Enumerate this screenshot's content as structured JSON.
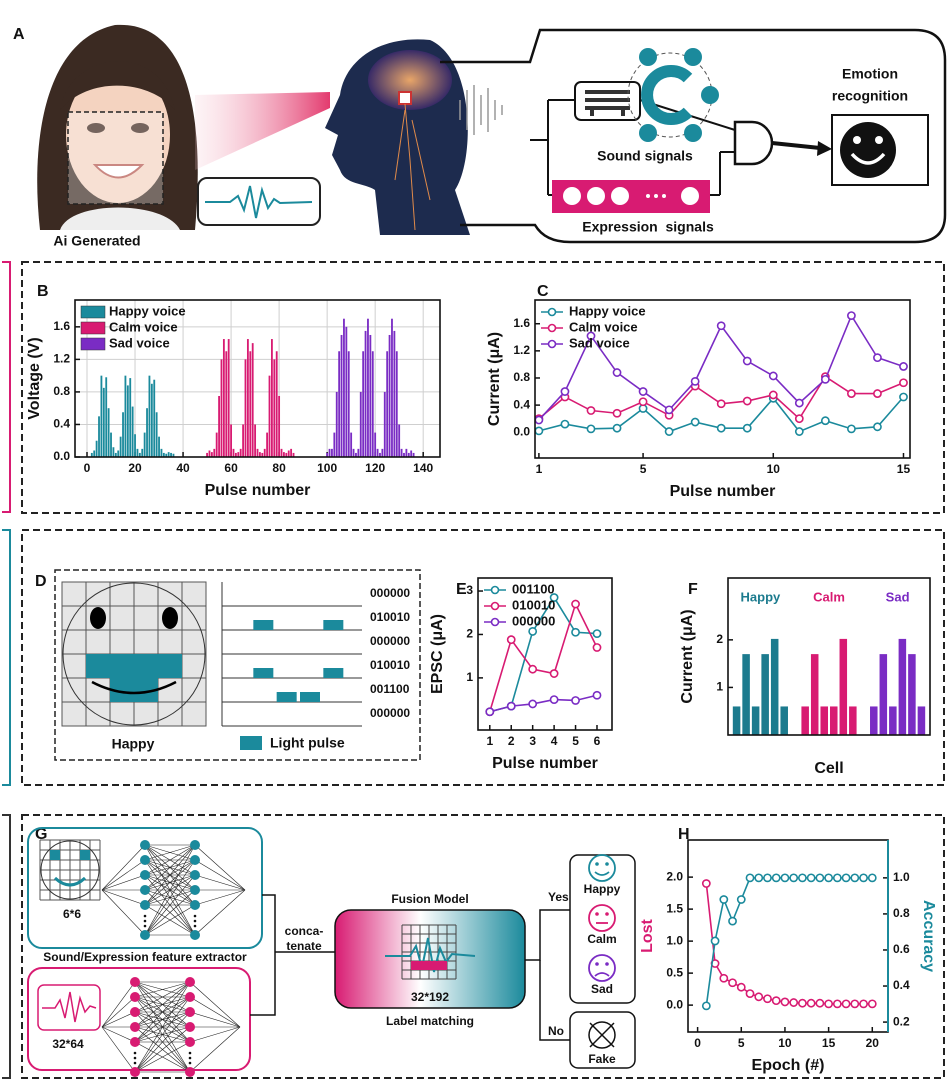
{
  "panel_a": {
    "label": "A",
    "caption": "Ai Generated",
    "sound": "Sound signals",
    "expression": "Expression  signals",
    "output": [
      "Emotion",
      "recognition"
    ]
  },
  "panel_d": {
    "label": "D",
    "caption": "Happy",
    "codes": [
      "000000",
      "010010",
      "000000",
      "010010",
      "001100",
      "000000"
    ],
    "legend": "Light pulse"
  },
  "panel_g": {
    "label": "G",
    "size_a": "6*6",
    "extractor": "Sound/Expression feature extractor",
    "size_b": "32*64",
    "concat": [
      "conca-",
      "tenate"
    ],
    "fusion": "Fusion Model",
    "size_c": "32*192",
    "matching": "Label matching",
    "yes": "Yes",
    "no": "No",
    "outcomes": [
      "Happy",
      "Calm",
      "Sad"
    ],
    "fake": "Fake"
  },
  "chart_data": [
    {
      "panel": "B",
      "type": "bar",
      "xlabel": "Pulse number",
      "ylabel": "Voltage (V)",
      "xlim": [
        -5,
        147
      ],
      "ylim": [
        0,
        1.93
      ],
      "xticks": [
        0,
        20,
        40,
        60,
        80,
        100,
        120,
        140
      ],
      "yticks": [
        {
          "value": 0,
          "label": "0.0"
        },
        0.4,
        0.8,
        1.2,
        1.6
      ],
      "grid": true,
      "legend": "upper left",
      "series": [
        {
          "name": "Happy voice",
          "color": "#1b8a9c",
          "x": [
            2,
            3,
            4,
            5,
            6,
            7,
            8,
            9,
            10,
            11,
            12,
            13,
            14,
            15,
            16,
            17,
            18,
            19,
            20,
            21,
            22,
            23,
            24,
            25,
            26,
            27,
            28,
            29,
            30,
            31,
            32,
            33,
            34,
            35,
            36
          ],
          "values": [
            0.05,
            0.08,
            0.2,
            0.5,
            1.0,
            0.85,
            0.98,
            0.6,
            0.3,
            0.12,
            0.05,
            0.08,
            0.25,
            0.55,
            1.0,
            0.88,
            0.97,
            0.62,
            0.28,
            0.1,
            0.05,
            0.1,
            0.3,
            0.6,
            1.0,
            0.9,
            0.95,
            0.55,
            0.25,
            0.1,
            0.05,
            0.04,
            0.06,
            0.05,
            0.04
          ]
        },
        {
          "name": "Calm voice",
          "color": "#d81b72",
          "x": [
            50,
            51,
            52,
            53,
            54,
            55,
            56,
            57,
            58,
            59,
            60,
            61,
            62,
            63,
            64,
            65,
            66,
            67,
            68,
            69,
            70,
            71,
            72,
            73,
            74,
            75,
            76,
            77,
            78,
            79,
            80,
            81,
            82,
            83,
            84,
            85,
            86
          ],
          "values": [
            0.05,
            0.08,
            0.06,
            0.1,
            0.3,
            0.75,
            1.2,
            1.45,
            1.3,
            1.45,
            0.4,
            0.1,
            0.05,
            0.06,
            0.1,
            0.4,
            1.2,
            1.45,
            1.3,
            1.4,
            0.4,
            0.1,
            0.06,
            0.05,
            0.1,
            0.3,
            1.0,
            1.45,
            1.2,
            1.3,
            0.75,
            0.1,
            0.06,
            0.05,
            0.08,
            0.1,
            0.05
          ]
        },
        {
          "name": "Sad voice",
          "color": "#7a2cc4",
          "x": [
            100,
            101,
            102,
            103,
            104,
            105,
            106,
            107,
            108,
            109,
            110,
            111,
            112,
            113,
            114,
            115,
            116,
            117,
            118,
            119,
            120,
            121,
            122,
            123,
            124,
            125,
            126,
            127,
            128,
            129,
            130,
            131,
            132,
            133,
            134,
            135,
            136
          ],
          "values": [
            0.05,
            0.1,
            0.1,
            0.3,
            0.8,
            1.3,
            1.5,
            1.7,
            1.6,
            1.3,
            0.3,
            0.1,
            0.05,
            0.1,
            0.8,
            1.3,
            1.55,
            1.7,
            1.5,
            1.3,
            0.3,
            0.1,
            0.05,
            0.1,
            0.8,
            1.3,
            1.5,
            1.7,
            1.55,
            1.3,
            0.4,
            0.1,
            0.05,
            0.1,
            0.05,
            0.08,
            0.05
          ]
        }
      ]
    },
    {
      "panel": "C",
      "type": "line",
      "xlabel": "Pulse number",
      "ylabel": "Current (μA)",
      "x": [
        1,
        2,
        3,
        4,
        5,
        6,
        7,
        8,
        9,
        10,
        11,
        12,
        13,
        14,
        15
      ],
      "xlim": [
        0.85,
        15.25
      ],
      "ylim": [
        -0.38,
        1.95
      ],
      "xticks": [
        1,
        5,
        10,
        15
      ],
      "yticks": [
        {
          "value": 0,
          "label": "0.0"
        },
        0.4,
        0.8,
        1.2,
        1.6
      ],
      "legend": "upper left",
      "series": [
        {
          "name": "Happy voice",
          "color": "#1b8a9c",
          "values": [
            0.02,
            0.12,
            0.05,
            0.06,
            0.35,
            0.01,
            0.15,
            0.06,
            0.06,
            0.5,
            0.01,
            0.17,
            0.05,
            0.08,
            0.52
          ]
        },
        {
          "name": "Calm voice",
          "color": "#d81b72",
          "values": [
            0.2,
            0.52,
            0.32,
            0.28,
            0.45,
            0.25,
            0.68,
            0.42,
            0.46,
            0.55,
            0.2,
            0.82,
            0.57,
            0.57,
            0.73
          ]
        },
        {
          "name": "Sad voice",
          "color": "#7a2cc4",
          "values": [
            0.18,
            0.6,
            1.42,
            0.88,
            0.6,
            0.33,
            0.75,
            1.57,
            1.05,
            0.83,
            0.43,
            0.78,
            1.72,
            1.1,
            0.97
          ]
        }
      ]
    },
    {
      "panel": "E",
      "type": "line",
      "xlabel": "Pulse number",
      "ylabel": "EPSC (μA)",
      "x": [
        1,
        2,
        3,
        4,
        5,
        6
      ],
      "xlim": [
        0.45,
        6.7
      ],
      "ylim": [
        -0.2,
        3.3
      ],
      "xticks": [
        1,
        2,
        3,
        4,
        5,
        6
      ],
      "yticks": [
        1,
        2,
        3
      ],
      "legend": "upper left",
      "series": [
        {
          "name": "001100",
          "color": "#1b8a9c",
          "values": [
            0.22,
            0.35,
            2.07,
            2.85,
            2.05,
            2.02
          ]
        },
        {
          "name": "010010",
          "color": "#d81b72",
          "values": [
            0.22,
            1.88,
            1.2,
            1.1,
            2.7,
            1.7
          ]
        },
        {
          "name": "000000",
          "color": "#7a2cc4",
          "values": [
            0.22,
            0.35,
            0.4,
            0.5,
            0.48,
            0.6
          ]
        }
      ]
    },
    {
      "panel": "F",
      "type": "bar",
      "xlabel": "Cell",
      "ylabel": "Current (μA)",
      "categories": [
        null,
        null,
        null,
        null,
        null,
        null
      ],
      "ylim": [
        0,
        3.3
      ],
      "yticks": [
        1,
        2
      ],
      "legend": "above groups",
      "series": [
        {
          "name": "Happy",
          "color": "#1c7b8e",
          "values": [
            0.6,
            1.7,
            0.6,
            1.7,
            2.02,
            0.6
          ]
        },
        {
          "name": "Calm",
          "color": "#d81b72",
          "values": [
            0.6,
            1.7,
            0.6,
            0.6,
            2.02,
            0.6
          ]
        },
        {
          "name": "Sad",
          "color": "#7a2cc4",
          "values": [
            0.6,
            1.7,
            0.6,
            2.02,
            1.7,
            0.6
          ]
        }
      ]
    },
    {
      "panel": "H",
      "type": "line",
      "xlabel": "Epoch (#)",
      "ylabel": "Lost",
      "y2label": "Accuracy",
      "x": [
        1,
        2,
        3,
        4,
        5,
        6,
        7,
        8,
        9,
        10,
        11,
        12,
        13,
        14,
        15,
        16,
        17,
        18,
        19,
        20
      ],
      "xlim": [
        -1.1,
        21.8
      ],
      "ylim": [
        -0.42,
        2.58
      ],
      "y2lim": [
        0.145,
        1.21
      ],
      "xticks": [
        0,
        5,
        10,
        15,
        20
      ],
      "yticks": [
        {
          "value": 0,
          "label": "0.0"
        },
        0.5,
        {
          "value": 1,
          "label": "1.0"
        },
        1.5,
        {
          "value": 2,
          "label": "2.0"
        }
      ],
      "y2ticks": [
        0.2,
        0.4,
        0.6,
        0.8,
        {
          "value": 1,
          "label": "1.0"
        }
      ],
      "series": [
        {
          "name": "Lost",
          "color": "#d81b72",
          "values": [
            1.9,
            0.65,
            0.42,
            0.35,
            0.28,
            0.18,
            0.13,
            0.1,
            0.07,
            0.05,
            0.04,
            0.03,
            0.03,
            0.03,
            0.02,
            0.02,
            0.02,
            0.02,
            0.02,
            0.02
          ]
        },
        {
          "name": "Accuracy",
          "color": "#1b8a9c",
          "axis": "y2",
          "values": [
            0.29,
            0.65,
            0.88,
            0.76,
            0.88,
            1,
            1,
            1,
            1,
            1,
            1,
            1,
            1,
            1,
            1,
            1,
            1,
            1,
            1,
            1
          ]
        }
      ]
    }
  ]
}
